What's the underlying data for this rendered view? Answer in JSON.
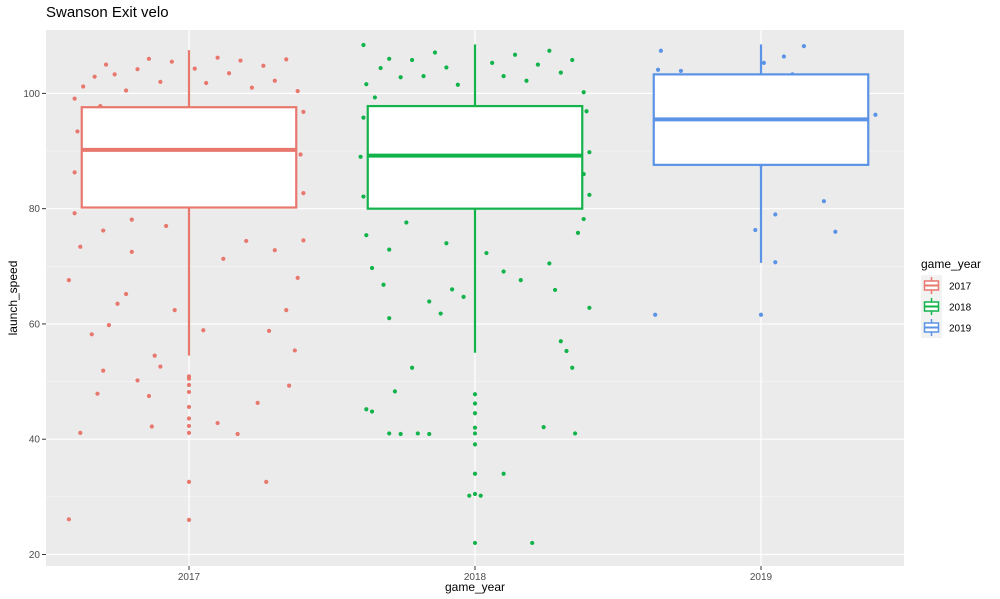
{
  "chart_data": {
    "type": "box",
    "title": "Swanson Exit velo",
    "xlabel": "game_year",
    "ylabel": "launch_speed",
    "categories": [
      "2017",
      "2018",
      "2019"
    ],
    "ylim": [
      18,
      111
    ],
    "yticks": [
      20,
      40,
      60,
      80,
      100
    ],
    "grid": true,
    "legend": {
      "title": "game_year",
      "placement": "right",
      "entries": [
        "2017",
        "2018",
        "2019"
      ]
    },
    "colors": {
      "2017": "#e8776e",
      "2018": "#12b34a",
      "2019": "#5b93e6"
    },
    "boxes": [
      {
        "category": "2017",
        "min": 54.5,
        "q1": 80.2,
        "median": 90.2,
        "q3": 97.6,
        "max": 107.5
      },
      {
        "category": "2018",
        "min": 55.0,
        "q1": 80.0,
        "median": 89.2,
        "q3": 97.8,
        "max": 108.5
      },
      {
        "category": "2019",
        "min": 70.6,
        "q1": 87.6,
        "median": 95.5,
        "q3": 103.3,
        "max": 108.5
      }
    ],
    "outliers": {
      "2017": [
        50.9,
        50.5,
        49.4,
        48.2,
        45.6,
        43.6,
        42.3,
        41.1,
        32.6,
        26.0
      ],
      "2018": [
        47.8,
        46.2,
        44.5,
        42.0,
        41.0,
        39.1,
        34.0,
        30.5,
        22.0
      ]
    },
    "points": {
      "2017": [
        {
          "x": -0.42,
          "y": 26.1
        },
        {
          "x": -0.38,
          "y": 41.1
        },
        {
          "x": -0.32,
          "y": 47.9
        },
        {
          "x": -0.3,
          "y": 51.9
        },
        {
          "x": -0.28,
          "y": 59.8
        },
        {
          "x": -0.34,
          "y": 58.2
        },
        {
          "x": -0.25,
          "y": 63.5
        },
        {
          "x": -0.22,
          "y": 65.2
        },
        {
          "x": -0.18,
          "y": 50.2
        },
        {
          "x": -0.14,
          "y": 47.5
        },
        {
          "x": -0.12,
          "y": 54.5
        },
        {
          "x": -0.1,
          "y": 52.6
        },
        {
          "x": -0.13,
          "y": 42.2
        },
        {
          "x": -0.05,
          "y": 62.4
        },
        {
          "x": 0.05,
          "y": 58.9
        },
        {
          "x": 0.1,
          "y": 42.8
        },
        {
          "x": 0.17,
          "y": 40.9
        },
        {
          "x": 0.24,
          "y": 46.3
        },
        {
          "x": 0.27,
          "y": 32.6
        },
        {
          "x": 0.28,
          "y": 58.8
        },
        {
          "x": 0.35,
          "y": 49.3
        },
        {
          "x": 0.37,
          "y": 55.4
        },
        {
          "x": 0.34,
          "y": 62.4
        },
        {
          "x": 0.38,
          "y": 68.0
        },
        {
          "x": 0.4,
          "y": 74.5
        },
        {
          "x": 0.3,
          "y": 72.8
        },
        {
          "x": 0.2,
          "y": 74.4
        },
        {
          "x": 0.12,
          "y": 71.3
        },
        {
          "x": -0.2,
          "y": 72.5
        },
        {
          "x": -0.42,
          "y": 67.6
        },
        {
          "x": -0.38,
          "y": 73.4
        },
        {
          "x": -0.3,
          "y": 76.2
        },
        {
          "x": -0.2,
          "y": 78.1
        },
        {
          "x": -0.08,
          "y": 77.0
        },
        {
          "x": -0.4,
          "y": 79.2
        },
        {
          "x": -0.35,
          "y": 81.1
        },
        {
          "x": -0.37,
          "y": 84.6
        },
        {
          "x": -0.4,
          "y": 86.3
        },
        {
          "x": -0.36,
          "y": 88.9
        },
        {
          "x": -0.33,
          "y": 91.2
        },
        {
          "x": -0.39,
          "y": 93.4
        },
        {
          "x": -0.35,
          "y": 95.6
        },
        {
          "x": -0.31,
          "y": 97.8
        },
        {
          "x": -0.4,
          "y": 99.1
        },
        {
          "x": -0.37,
          "y": 101.2
        },
        {
          "x": -0.33,
          "y": 102.9
        },
        {
          "x": -0.29,
          "y": 105.0
        },
        {
          "x": -0.26,
          "y": 103.3
        },
        {
          "x": -0.22,
          "y": 100.5
        },
        {
          "x": -0.18,
          "y": 104.2
        },
        {
          "x": -0.14,
          "y": 106.0
        },
        {
          "x": -0.1,
          "y": 102.0
        },
        {
          "x": -0.06,
          "y": 105.5
        },
        {
          "x": 0.02,
          "y": 104.3
        },
        {
          "x": 0.06,
          "y": 101.8
        },
        {
          "x": 0.1,
          "y": 106.2
        },
        {
          "x": 0.14,
          "y": 103.5
        },
        {
          "x": 0.18,
          "y": 105.7
        },
        {
          "x": 0.22,
          "y": 101.0
        },
        {
          "x": 0.26,
          "y": 104.8
        },
        {
          "x": 0.3,
          "y": 102.2
        },
        {
          "x": 0.34,
          "y": 105.9
        },
        {
          "x": 0.38,
          "y": 100.4
        },
        {
          "x": 0.4,
          "y": 96.8
        },
        {
          "x": 0.36,
          "y": 93.0
        },
        {
          "x": 0.39,
          "y": 89.4
        },
        {
          "x": 0.37,
          "y": 86.0
        },
        {
          "x": 0.4,
          "y": 82.7
        },
        {
          "x": -0.26,
          "y": 95.2
        },
        {
          "x": -0.22,
          "y": 92.1
        },
        {
          "x": -0.18,
          "y": 88.4
        },
        {
          "x": -0.14,
          "y": 85.3
        },
        {
          "x": -0.1,
          "y": 82.6
        },
        {
          "x": -0.06,
          "y": 87.7
        },
        {
          "x": -0.02,
          "y": 91.6
        },
        {
          "x": 0.02,
          "y": 94.3
        },
        {
          "x": 0.06,
          "y": 89.1
        },
        {
          "x": 0.1,
          "y": 85.5
        },
        {
          "x": 0.14,
          "y": 81.9
        },
        {
          "x": 0.18,
          "y": 87.2
        },
        {
          "x": 0.22,
          "y": 92.8
        },
        {
          "x": 0.26,
          "y": 95.9
        },
        {
          "x": 0.3,
          "y": 90.7
        },
        {
          "x": 0.34,
          "y": 84.1
        },
        {
          "x": -0.24,
          "y": 83.6
        },
        {
          "x": -0.16,
          "y": 96.5
        },
        {
          "x": -0.08,
          "y": 93.8
        },
        {
          "x": 0.0,
          "y": 86.8
        },
        {
          "x": 0.08,
          "y": 97.0
        },
        {
          "x": 0.16,
          "y": 93.3
        },
        {
          "x": 0.24,
          "y": 86.5
        },
        {
          "x": 0.32,
          "y": 96.2
        },
        {
          "x": -0.28,
          "y": 88.0
        },
        {
          "x": -0.2,
          "y": 81.4
        },
        {
          "x": -0.12,
          "y": 90.9
        },
        {
          "x": -0.04,
          "y": 83.2
        },
        {
          "x": 0.04,
          "y": 80.9
        },
        {
          "x": 0.12,
          "y": 91.4
        },
        {
          "x": 0.2,
          "y": 82.8
        },
        {
          "x": 0.28,
          "y": 87.9
        }
      ],
      "2018": [
        {
          "x": -0.38,
          "y": 45.2
        },
        {
          "x": -0.36,
          "y": 44.8
        },
        {
          "x": -0.3,
          "y": 41.0
        },
        {
          "x": -0.26,
          "y": 40.9
        },
        {
          "x": -0.2,
          "y": 41.0
        },
        {
          "x": -0.16,
          "y": 40.9
        },
        {
          "x": -0.28,
          "y": 48.3
        },
        {
          "x": -0.22,
          "y": 52.4
        },
        {
          "x": -0.16,
          "y": 63.9
        },
        {
          "x": -0.12,
          "y": 61.8
        },
        {
          "x": -0.08,
          "y": 66.0
        },
        {
          "x": -0.04,
          "y": 64.7
        },
        {
          "x": -0.3,
          "y": 61.0
        },
        {
          "x": -0.36,
          "y": 69.7
        },
        {
          "x": -0.32,
          "y": 66.8
        },
        {
          "x": -0.02,
          "y": 30.2
        },
        {
          "x": 0.02,
          "y": 30.2
        },
        {
          "x": 0.1,
          "y": 34.0
        },
        {
          "x": 0.2,
          "y": 22.0
        },
        {
          "x": 0.24,
          "y": 42.1
        },
        {
          "x": 0.3,
          "y": 57.0
        },
        {
          "x": 0.32,
          "y": 55.3
        },
        {
          "x": 0.34,
          "y": 52.4
        },
        {
          "x": 0.35,
          "y": 41.0
        },
        {
          "x": 0.4,
          "y": 62.8
        },
        {
          "x": 0.28,
          "y": 65.9
        },
        {
          "x": 0.26,
          "y": 70.5
        },
        {
          "x": 0.16,
          "y": 67.6
        },
        {
          "x": 0.1,
          "y": 69.1
        },
        {
          "x": 0.04,
          "y": 72.3
        },
        {
          "x": -0.38,
          "y": 75.4
        },
        {
          "x": -0.3,
          "y": 72.9
        },
        {
          "x": -0.24,
          "y": 77.6
        },
        {
          "x": -0.1,
          "y": 74.0
        },
        {
          "x": 0.36,
          "y": 75.8
        },
        {
          "x": 0.38,
          "y": 78.2
        },
        {
          "x": -0.39,
          "y": 82.1
        },
        {
          "x": -0.36,
          "y": 85.7
        },
        {
          "x": -0.4,
          "y": 89.0
        },
        {
          "x": -0.37,
          "y": 92.5
        },
        {
          "x": -0.39,
          "y": 95.8
        },
        {
          "x": -0.35,
          "y": 99.3
        },
        {
          "x": -0.38,
          "y": 101.6
        },
        {
          "x": -0.33,
          "y": 104.4
        },
        {
          "x": -0.39,
          "y": 108.4
        },
        {
          "x": -0.3,
          "y": 106.0
        },
        {
          "x": -0.26,
          "y": 102.8
        },
        {
          "x": -0.22,
          "y": 105.8
        },
        {
          "x": -0.18,
          "y": 103.0
        },
        {
          "x": -0.14,
          "y": 107.1
        },
        {
          "x": -0.1,
          "y": 104.5
        },
        {
          "x": -0.06,
          "y": 101.5
        },
        {
          "x": 0.06,
          "y": 105.3
        },
        {
          "x": 0.1,
          "y": 103.0
        },
        {
          "x": 0.14,
          "y": 106.7
        },
        {
          "x": 0.18,
          "y": 102.2
        },
        {
          "x": 0.22,
          "y": 105.0
        },
        {
          "x": 0.26,
          "y": 107.4
        },
        {
          "x": 0.3,
          "y": 103.6
        },
        {
          "x": 0.34,
          "y": 105.8
        },
        {
          "x": 0.38,
          "y": 100.2
        },
        {
          "x": 0.39,
          "y": 96.9
        },
        {
          "x": 0.37,
          "y": 93.3
        },
        {
          "x": 0.4,
          "y": 89.8
        },
        {
          "x": 0.38,
          "y": 86.0
        },
        {
          "x": 0.4,
          "y": 82.4
        },
        {
          "x": -0.26,
          "y": 95.6
        },
        {
          "x": -0.22,
          "y": 91.8
        },
        {
          "x": -0.18,
          "y": 88.2
        },
        {
          "x": -0.14,
          "y": 84.9
        },
        {
          "x": -0.1,
          "y": 81.6
        },
        {
          "x": -0.06,
          "y": 87.0
        },
        {
          "x": -0.02,
          "y": 92.4
        },
        {
          "x": 0.02,
          "y": 95.1
        },
        {
          "x": 0.06,
          "y": 88.8
        },
        {
          "x": 0.1,
          "y": 84.3
        },
        {
          "x": 0.14,
          "y": 81.2
        },
        {
          "x": 0.18,
          "y": 86.6
        },
        {
          "x": 0.22,
          "y": 93.1
        },
        {
          "x": 0.26,
          "y": 96.4
        },
        {
          "x": 0.3,
          "y": 90.5
        },
        {
          "x": 0.34,
          "y": 83.5
        },
        {
          "x": -0.32,
          "y": 83.9
        },
        {
          "x": -0.16,
          "y": 96.2
        },
        {
          "x": -0.08,
          "y": 93.7
        },
        {
          "x": 0.0,
          "y": 86.2
        },
        {
          "x": 0.08,
          "y": 96.8
        },
        {
          "x": 0.16,
          "y": 92.6
        },
        {
          "x": 0.24,
          "y": 85.3
        },
        {
          "x": 0.32,
          "y": 95.7
        },
        {
          "x": -0.28,
          "y": 88.6
        },
        {
          "x": -0.2,
          "y": 81.0
        },
        {
          "x": -0.12,
          "y": 90.6
        },
        {
          "x": -0.04,
          "y": 82.9
        },
        {
          "x": 0.04,
          "y": 80.7
        },
        {
          "x": 0.12,
          "y": 91.0
        },
        {
          "x": 0.2,
          "y": 82.5
        },
        {
          "x": 0.28,
          "y": 88.1
        }
      ],
      "2019": [
        {
          "x": -0.37,
          "y": 61.6
        },
        {
          "x": 0.0,
          "y": 61.6
        },
        {
          "x": 0.05,
          "y": 70.7
        },
        {
          "x": -0.02,
          "y": 76.3
        },
        {
          "x": 0.05,
          "y": 79.0
        },
        {
          "x": 0.22,
          "y": 81.3
        },
        {
          "x": 0.26,
          "y": 76.0
        },
        {
          "x": 0.0,
          "y": 87.6
        },
        {
          "x": -0.25,
          "y": 91.0
        },
        {
          "x": -0.37,
          "y": 92.0
        },
        {
          "x": -0.12,
          "y": 97.1
        },
        {
          "x": -0.23,
          "y": 99.1
        },
        {
          "x": -0.37,
          "y": 100.1
        },
        {
          "x": -0.28,
          "y": 103.9
        },
        {
          "x": -0.36,
          "y": 104.1
        },
        {
          "x": -0.35,
          "y": 107.4
        },
        {
          "x": 0.01,
          "y": 105.3
        },
        {
          "x": 0.08,
          "y": 106.4
        },
        {
          "x": 0.11,
          "y": 103.3
        },
        {
          "x": 0.15,
          "y": 108.2
        },
        {
          "x": 0.33,
          "y": 101.8
        },
        {
          "x": 0.4,
          "y": 96.3
        },
        {
          "x": 0.33,
          "y": 89.3
        },
        {
          "x": 0.23,
          "y": 89.6
        },
        {
          "x": -0.2,
          "y": 95.0
        }
      ]
    }
  }
}
